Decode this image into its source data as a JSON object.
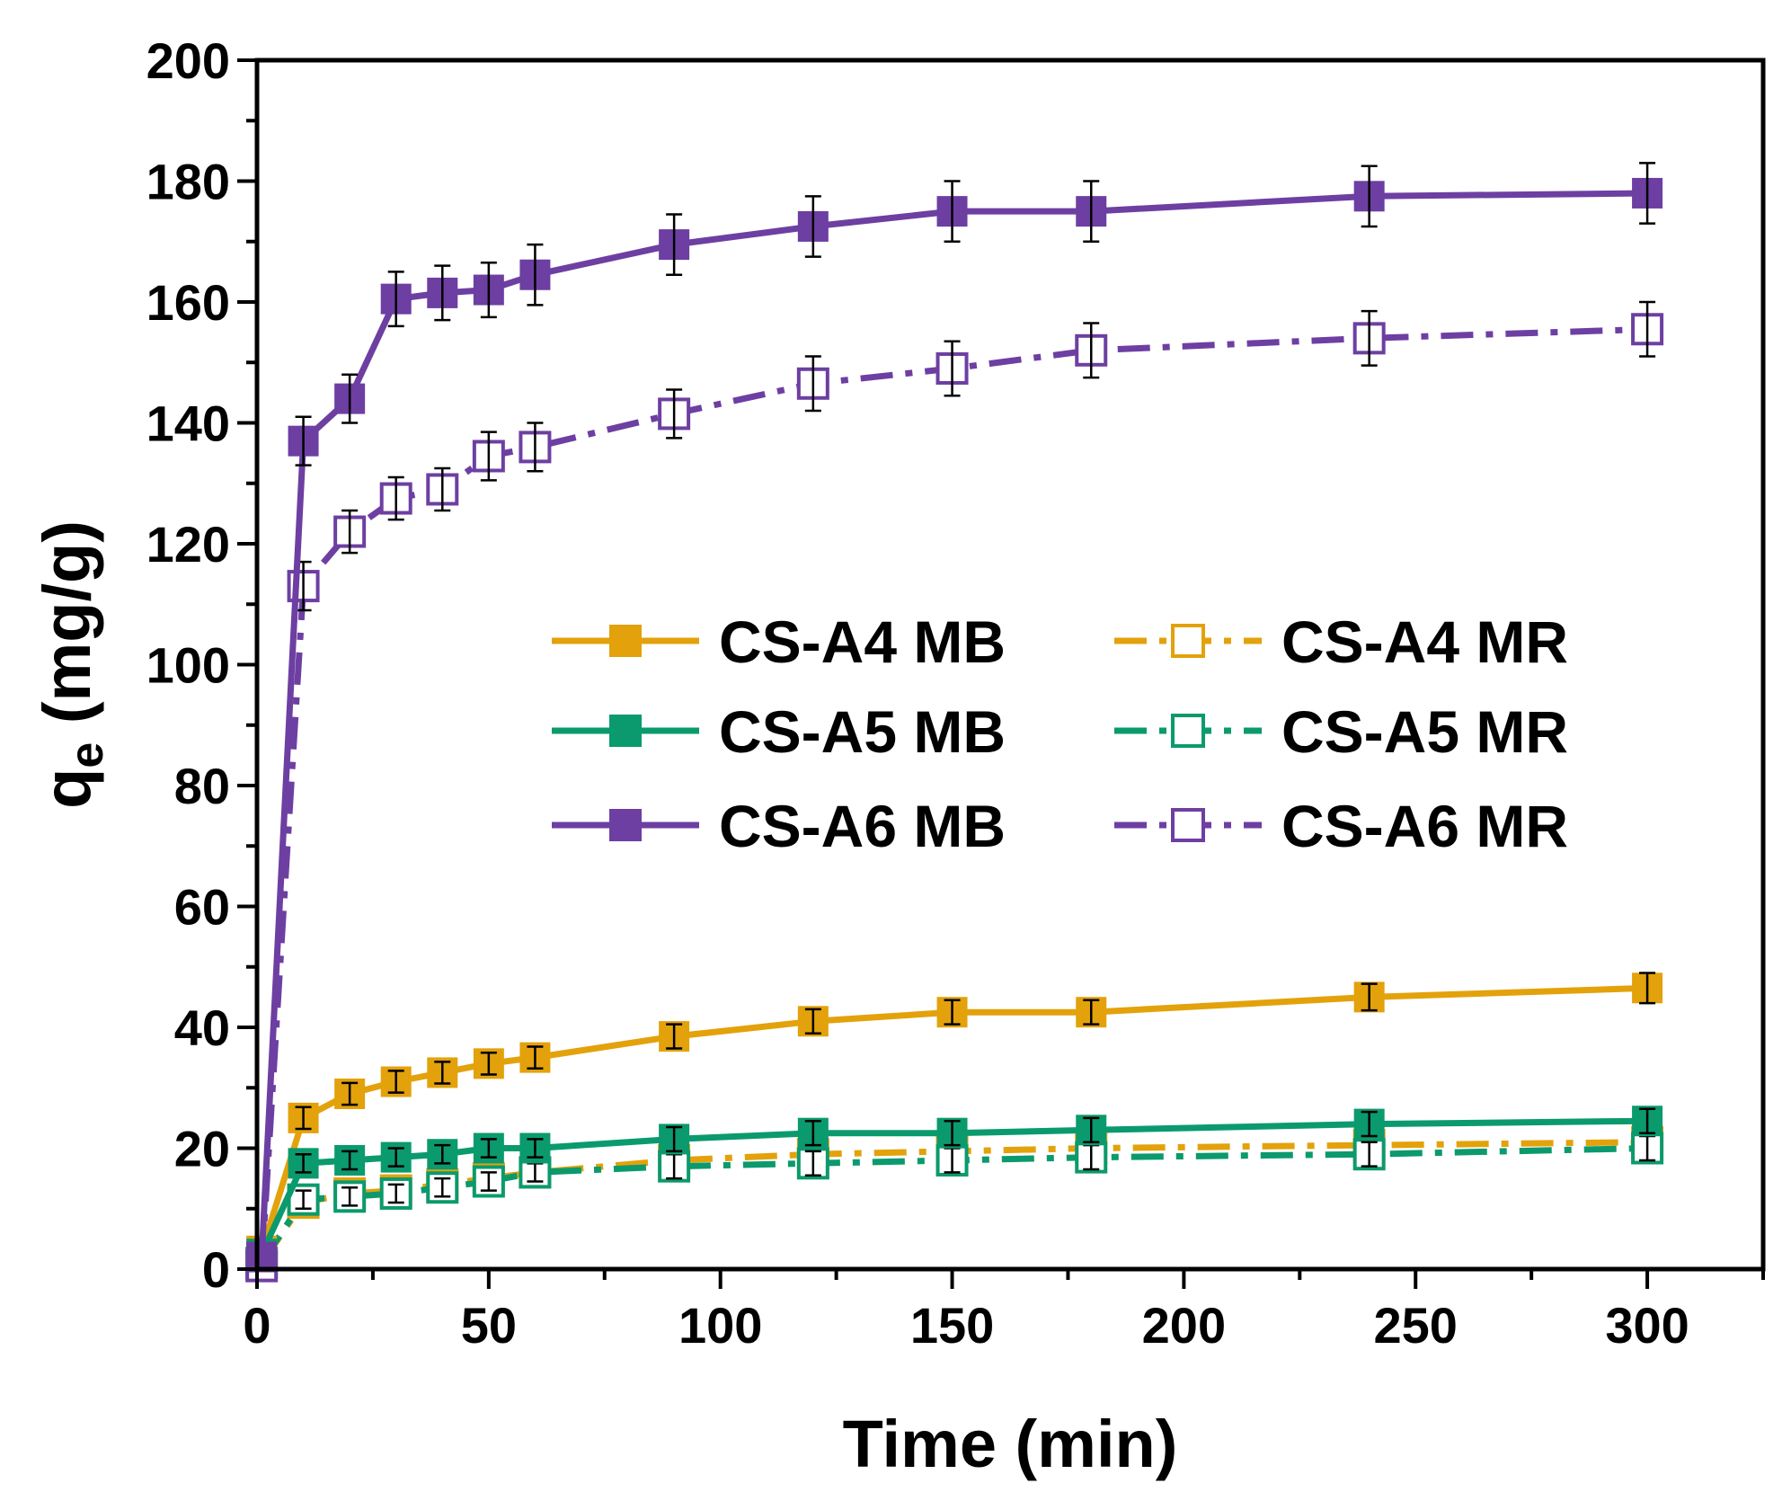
{
  "chart_data": {
    "type": "line",
    "xlabel": "Time (min)",
    "ylabel_main": "q",
    "ylabel_sub": "e",
    "ylabel_unit": " (mg/g)",
    "xlim": [
      0,
      325
    ],
    "ylim": [
      0,
      200
    ],
    "xticks": [
      "0",
      "50",
      "100",
      "150",
      "200",
      "250",
      "300"
    ],
    "yticks": [
      "0",
      "20",
      "40",
      "60",
      "80",
      "100",
      "120",
      "140",
      "160",
      "180",
      "200"
    ],
    "grid": false,
    "legend_position": "center-right",
    "colors": {
      "A4": "#E3A20B",
      "A5": "#0B9A6D",
      "A6": "#6D3FA2"
    },
    "x": [
      1,
      10,
      20,
      30,
      40,
      50,
      60,
      90,
      120,
      150,
      180,
      240,
      300
    ],
    "series": [
      {
        "name": "CS-A4 MB",
        "color": "#E3A20B",
        "filled": true,
        "dash": "solid",
        "values": [
          3,
          25,
          29,
          31,
          32.5,
          34,
          35,
          38.5,
          41,
          42.5,
          42.5,
          45,
          46.5
        ],
        "errors": [
          1,
          1.8,
          1.8,
          1.8,
          1.8,
          1.8,
          1.8,
          2,
          2,
          2,
          2,
          2.2,
          2.5
        ]
      },
      {
        "name": "CS-A4 MR",
        "color": "#E3A20B",
        "filled": false,
        "dash": "dashdot",
        "values": [
          1,
          11,
          12.5,
          13,
          14,
          15,
          16,
          18,
          19,
          19.5,
          20,
          20.5,
          21
        ],
        "errors": [
          0.5,
          1.5,
          1.5,
          1.5,
          1.5,
          1.5,
          1.5,
          2,
          2,
          2,
          2,
          2,
          2
        ]
      },
      {
        "name": "CS-A5 MB",
        "color": "#0B9A6D",
        "filled": true,
        "dash": "solid",
        "values": [
          2.5,
          17.5,
          18,
          18.5,
          19,
          20,
          20,
          21.5,
          22.5,
          22.5,
          23,
          24,
          24.5
        ],
        "errors": [
          1,
          1.5,
          1.5,
          1.5,
          1.5,
          1.5,
          1.5,
          2,
          2,
          2,
          2,
          2,
          2
        ]
      },
      {
        "name": "CS-A5 MR",
        "color": "#0B9A6D",
        "filled": false,
        "dash": "dashdot",
        "values": [
          1,
          11.5,
          12,
          12.5,
          13.5,
          14.5,
          16,
          17,
          17.5,
          18,
          18.5,
          19,
          20
        ],
        "errors": [
          0.5,
          1.5,
          1.5,
          1.5,
          1.5,
          1.5,
          1.5,
          2,
          2,
          2,
          2,
          2,
          2
        ]
      },
      {
        "name": "CS-A6 MB",
        "color": "#6D3FA2",
        "filled": true,
        "dash": "solid",
        "values": [
          2,
          137,
          144,
          160.5,
          161.5,
          162,
          164.5,
          169.5,
          172.5,
          175,
          175,
          177.5,
          178
        ],
        "errors": [
          1,
          4,
          4,
          4.5,
          4.5,
          4.5,
          5,
          5,
          5,
          5,
          5,
          5,
          5
        ]
      },
      {
        "name": "CS-A6 MR",
        "color": "#6D3FA2",
        "filled": false,
        "dash": "dashdot",
        "values": [
          0.5,
          113,
          122,
          127.5,
          129,
          134.5,
          136,
          141.5,
          146.5,
          149,
          152,
          154,
          155.5
        ],
        "errors": [
          0.5,
          4,
          3.5,
          3.5,
          3.5,
          4,
          4,
          4,
          4.5,
          4.5,
          4.5,
          4.5,
          4.5
        ]
      }
    ],
    "legend_order": [
      0,
      1,
      2,
      3,
      4,
      5
    ]
  }
}
